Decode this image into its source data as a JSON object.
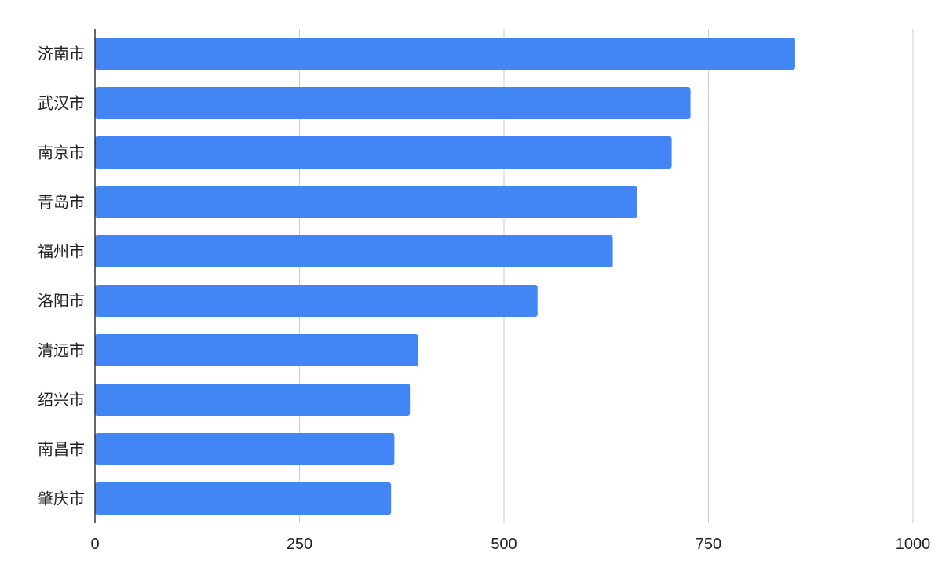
{
  "chart_data": {
    "type": "bar",
    "orientation": "horizontal",
    "categories": [
      "济南市",
      "武汉市",
      "南京市",
      "青岛市",
      "福州市",
      "洛阳市",
      "清远市",
      "绍兴市",
      "南昌市",
      "肇庆市"
    ],
    "values": [
      856,
      728,
      705,
      663,
      633,
      541,
      395,
      385,
      366,
      362
    ],
    "xlim": [
      0,
      1000
    ],
    "xticks": [
      0,
      250,
      500,
      750,
      1000
    ],
    "xtick_labels": [
      "0",
      "250",
      "500",
      "750",
      "1000"
    ],
    "title": "",
    "xlabel": "",
    "ylabel": "",
    "grid": true,
    "bar_color": "#4285f4"
  }
}
